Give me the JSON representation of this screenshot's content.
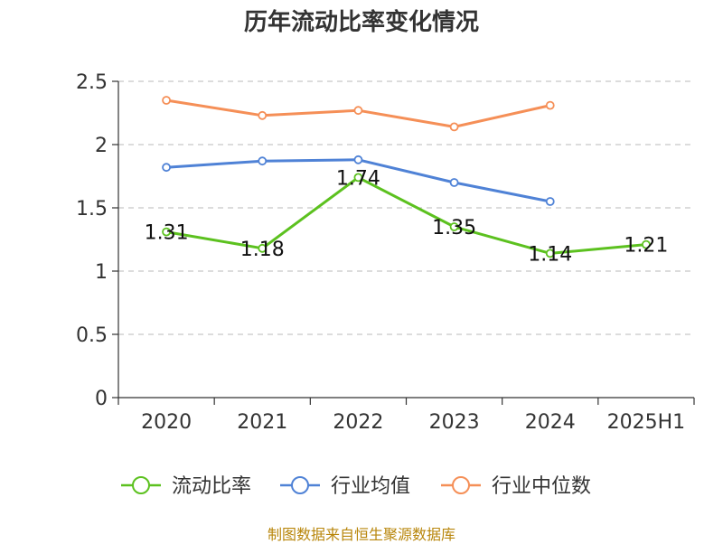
{
  "chart_data": {
    "type": "line",
    "title": "历年流动比率变化情况",
    "categories": [
      "2020",
      "2021",
      "2022",
      "2023",
      "2024",
      "2025H1"
    ],
    "ylim": [
      0,
      2.5
    ],
    "yticks": [
      "0",
      "0.5",
      "1",
      "1.5",
      "2",
      "2.5"
    ],
    "grid": true,
    "legend_position": "bottom",
    "series": [
      {
        "name": "流动比率",
        "color": "#5cc11f",
        "values": [
          1.31,
          1.18,
          1.74,
          1.35,
          1.14,
          1.21
        ],
        "labels": [
          "1.31",
          "1.18",
          "1.74",
          "1.35",
          "1.14",
          "1.21"
        ]
      },
      {
        "name": "行业均值",
        "color": "#4f82d6",
        "values": [
          1.82,
          1.87,
          1.88,
          1.7,
          1.55,
          null
        ]
      },
      {
        "name": "行业中位数",
        "color": "#f58f57",
        "values": [
          2.35,
          2.23,
          2.27,
          2.14,
          2.31,
          null
        ]
      }
    ]
  },
  "source": "制图数据来自恒生聚源数据库"
}
